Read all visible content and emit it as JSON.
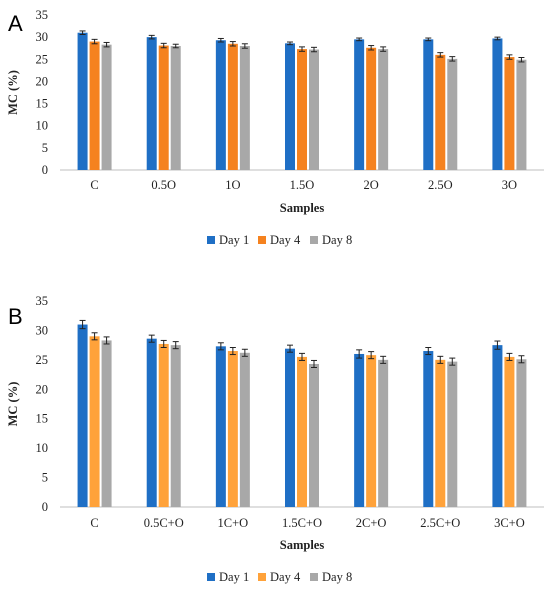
{
  "chart_data": [
    {
      "panel_label": "A",
      "type": "bar",
      "categories": [
        "C",
        "0.5O",
        "1O",
        "1.5O",
        "2O",
        "2.5O",
        "3O"
      ],
      "xlabel": "Samples",
      "ylabel": "MC (%)",
      "ylim": [
        0,
        35
      ],
      "yticks": [
        0,
        5,
        10,
        15,
        20,
        25,
        30,
        35
      ],
      "grid": false,
      "legend_position": "bottom",
      "series": [
        {
          "name": "Day 1",
          "color": "#1F6FC5",
          "values": [
            31.0,
            30.0,
            29.3,
            28.6,
            29.5,
            29.5,
            29.7
          ],
          "errors": [
            0.4,
            0.4,
            0.4,
            0.3,
            0.3,
            0.3,
            0.3
          ]
        },
        {
          "name": "Day 4",
          "color": "#F5821F",
          "values": [
            29.0,
            28.1,
            28.5,
            27.3,
            27.6,
            26.0,
            25.5
          ],
          "errors": [
            0.5,
            0.5,
            0.5,
            0.5,
            0.5,
            0.5,
            0.5
          ]
        },
        {
          "name": "Day 8",
          "color": "#A8A8A8",
          "values": [
            28.3,
            28.0,
            28.0,
            27.2,
            27.3,
            25.1,
            24.9
          ],
          "errors": [
            0.5,
            0.4,
            0.5,
            0.5,
            0.5,
            0.5,
            0.5
          ]
        }
      ]
    },
    {
      "panel_label": "B",
      "type": "bar",
      "categories": [
        "C",
        "0.5C+O",
        "1C+O",
        "1.5C+O",
        "2C+O",
        "2.5C+O",
        "3C+O"
      ],
      "xlabel": "Samples",
      "ylabel": "MC (%)",
      "ylim": [
        0,
        35
      ],
      "yticks": [
        0,
        5,
        10,
        15,
        20,
        25,
        30,
        35
      ],
      "grid": false,
      "legend_position": "bottom",
      "series": [
        {
          "name": "Day 1",
          "color": "#1F6FC5",
          "values": [
            31.0,
            28.6,
            27.3,
            26.9,
            26.0,
            26.5,
            27.5
          ],
          "errors": [
            0.7,
            0.6,
            0.6,
            0.6,
            0.7,
            0.6,
            0.7
          ]
        },
        {
          "name": "Day 4",
          "color": "#FFA23A",
          "values": [
            29.0,
            27.7,
            26.5,
            25.5,
            25.8,
            25.0,
            25.5
          ],
          "errors": [
            0.6,
            0.6,
            0.6,
            0.6,
            0.6,
            0.6,
            0.6
          ]
        },
        {
          "name": "Day 8",
          "color": "#A8A8A8",
          "values": [
            28.3,
            27.5,
            26.2,
            24.3,
            25.0,
            24.7,
            25.1
          ],
          "errors": [
            0.6,
            0.6,
            0.6,
            0.6,
            0.6,
            0.6,
            0.6
          ]
        }
      ]
    }
  ]
}
